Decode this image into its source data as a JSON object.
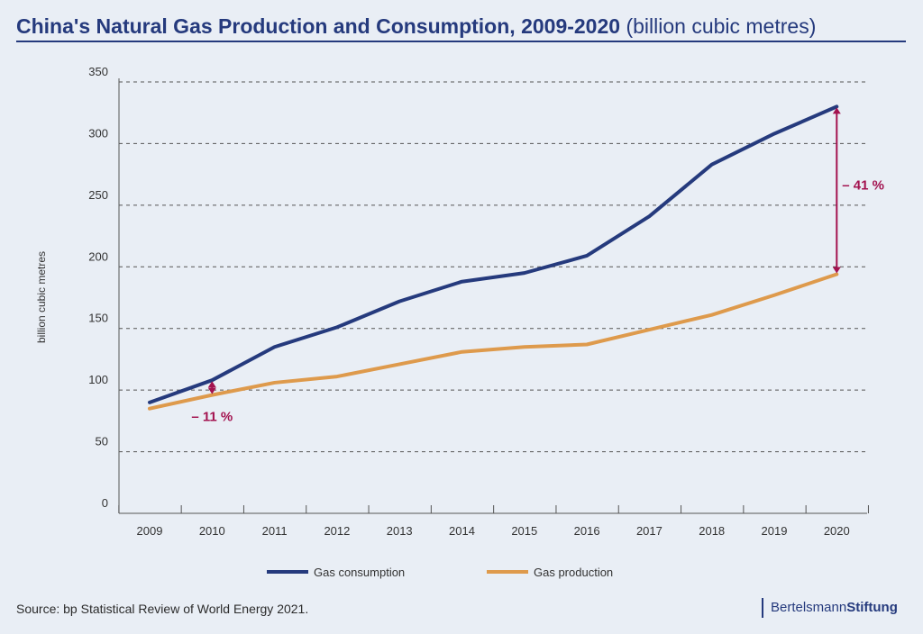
{
  "header": {
    "title_main": "China's Natural Gas Production and Consumption, 2009-2020",
    "title_unit": "(billion cubic metres)"
  },
  "footer": {
    "source": "Source: bp Statistical Review of World Energy 2021.",
    "brand_part1": "Bertelsmann",
    "brand_part2": "Stiftung"
  },
  "colors": {
    "consumption": "#253a7d",
    "production": "#de9a4c",
    "annotation": "#a3124f",
    "grid": "#555555",
    "axis_text": "#333333"
  },
  "chart_data": {
    "type": "line",
    "title": "China's Natural Gas Production and Consumption, 2009-2020 (billion cubic metres)",
    "xlabel": "",
    "ylabel": "billion cubic metres",
    "ylim": [
      0,
      350
    ],
    "yticks": [
      0,
      50,
      100,
      150,
      200,
      250,
      300,
      350
    ],
    "categories": [
      "2009",
      "2010",
      "2011",
      "2012",
      "2013",
      "2014",
      "2015",
      "2016",
      "2017",
      "2018",
      "2019",
      "2020"
    ],
    "series": [
      {
        "name": "Gas consumption",
        "color": "#253a7d",
        "values": [
          90,
          108,
          135,
          151,
          172,
          188,
          195,
          209,
          241,
          283,
          308,
          330
        ]
      },
      {
        "name": "Gas production",
        "color": "#de9a4c",
        "values": [
          85,
          96,
          106,
          111,
          121,
          131,
          135,
          137,
          149,
          161,
          177,
          194
        ]
      }
    ],
    "annotations": [
      {
        "label": "– 11 %",
        "category": "2010",
        "from": 108,
        "to": 96
      },
      {
        "label": "– 41 %",
        "category": "2020",
        "from": 330,
        "to": 194
      }
    ],
    "grid": true,
    "legend_position": "bottom"
  }
}
